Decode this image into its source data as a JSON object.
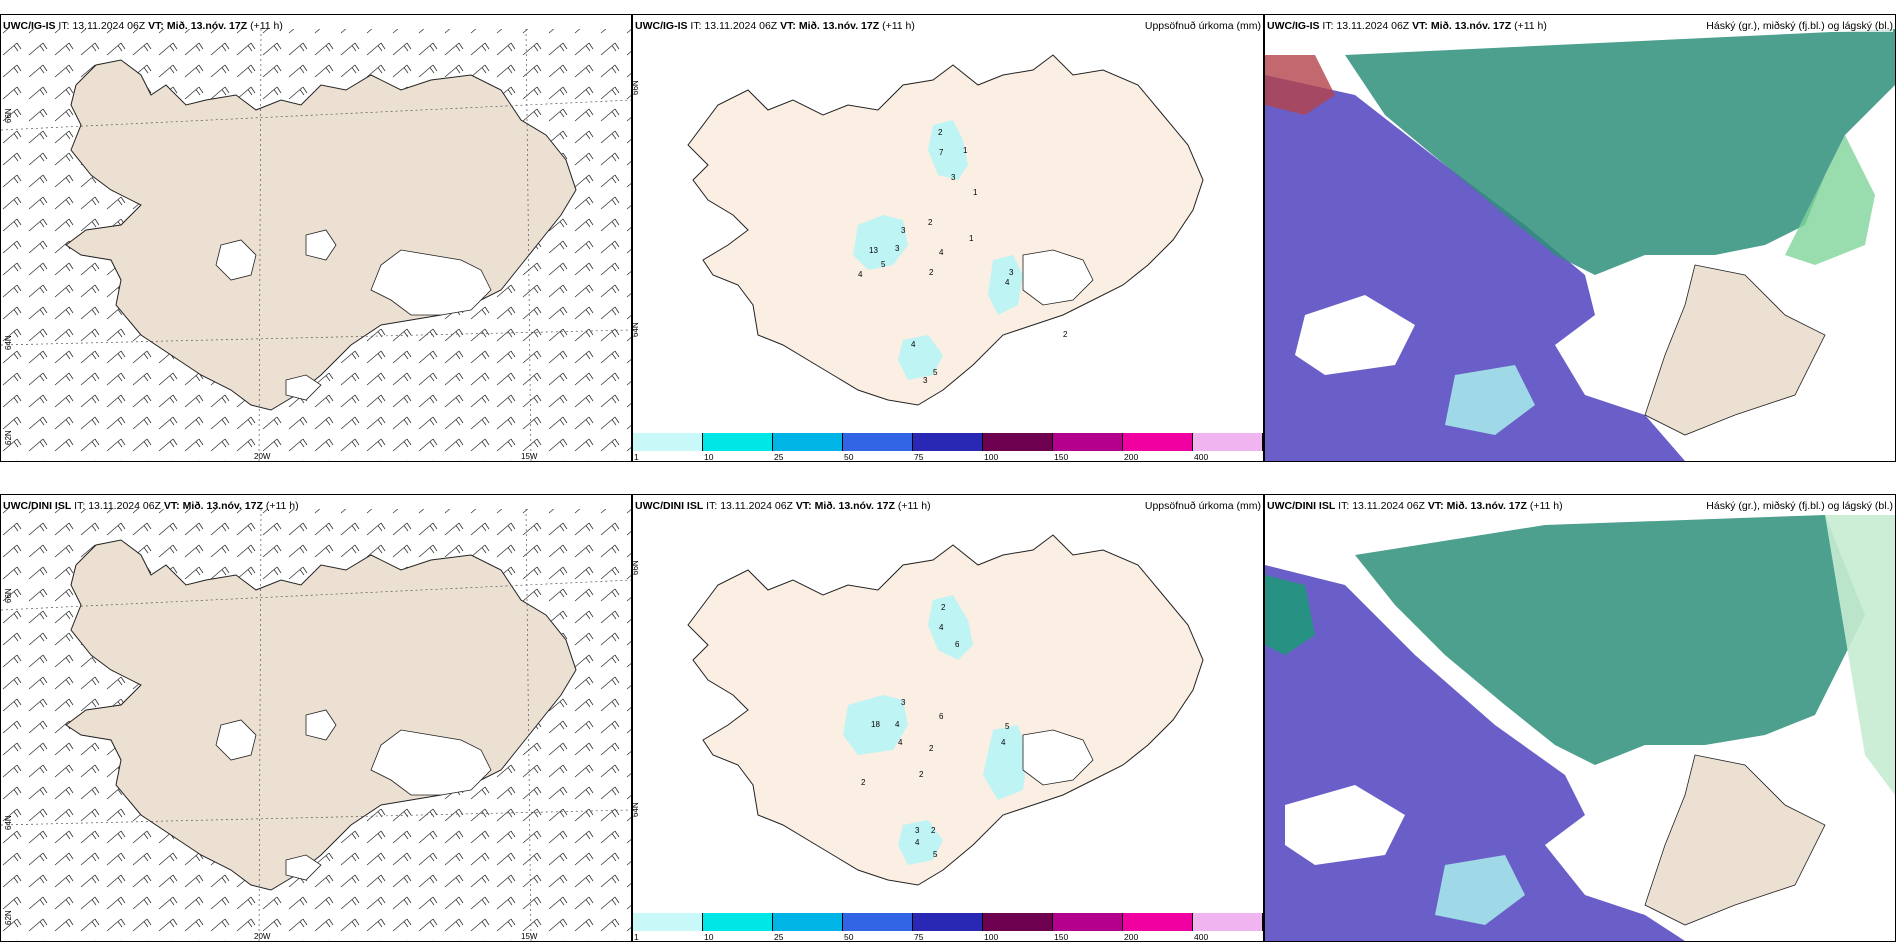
{
  "rows": [
    {
      "model": "UWC/IG-IS",
      "it_label": "IT:",
      "it_value": "13.11.2024 06Z",
      "vt_label": "VT:",
      "vt_value": "Mið. 13.nóv. 17Z",
      "lead": "(+11 h)",
      "precip_numbers": [
        "2",
        "7",
        "1",
        "3",
        "1",
        "2",
        "3",
        "13",
        "3",
        "5",
        "4",
        "4",
        "1",
        "2",
        "3",
        "4",
        "2",
        "4",
        "5",
        "3"
      ],
      "right_title_precip": "Uppsöfnuð úrkoma (mm)",
      "right_title_cloud": "Háský (gr.), miðský (fj.bl.) og lágský (bl.)"
    },
    {
      "model": "UWC/DINI ISL",
      "it_label": "IT:",
      "it_value": "13.11.2024 06Z",
      "vt_label": "VT:",
      "vt_value": "Mið. 13.nóv. 17Z",
      "lead": "(+11 h)",
      "precip_numbers": [
        "2",
        "4",
        "6",
        "3",
        "18",
        "4",
        "4",
        "6",
        "2",
        "5",
        "4",
        "2",
        "2",
        "3",
        "2",
        "4",
        "5"
      ],
      "right_title_precip": "Uppsöfnuð úrkoma (mm)",
      "right_title_cloud": "Háský (gr.), miðský (fj.bl.) og lágský (bl.)"
    }
  ],
  "axis_labels": {
    "lon_20w": "20W",
    "lon_15w": "15W",
    "lat_66n": "66N",
    "lat_64n": "64N",
    "lat_62n": "62N",
    "lat_65n_right": "65N",
    "lat_64n_right": "64N"
  },
  "colorbar": {
    "ticks": [
      "1",
      "10",
      "25",
      "50",
      "75",
      "100",
      "150",
      "200",
      "400"
    ],
    "colors": [
      "#c8f8f8",
      "#00e6e6",
      "#00b4e6",
      "#3264e6",
      "#2828b4",
      "#6e0050",
      "#b4008c",
      "#f000a0",
      "#f0b4f0"
    ]
  },
  "colors": {
    "land": "#ece0d3",
    "land_light": "#fbeee2",
    "precip_light": "#bff4f4",
    "high_cloud": "#2e8f7a",
    "mid_cloud": "#6a5fc8",
    "low_cloud_light": "#9fd9e8",
    "coast": "#222222"
  }
}
